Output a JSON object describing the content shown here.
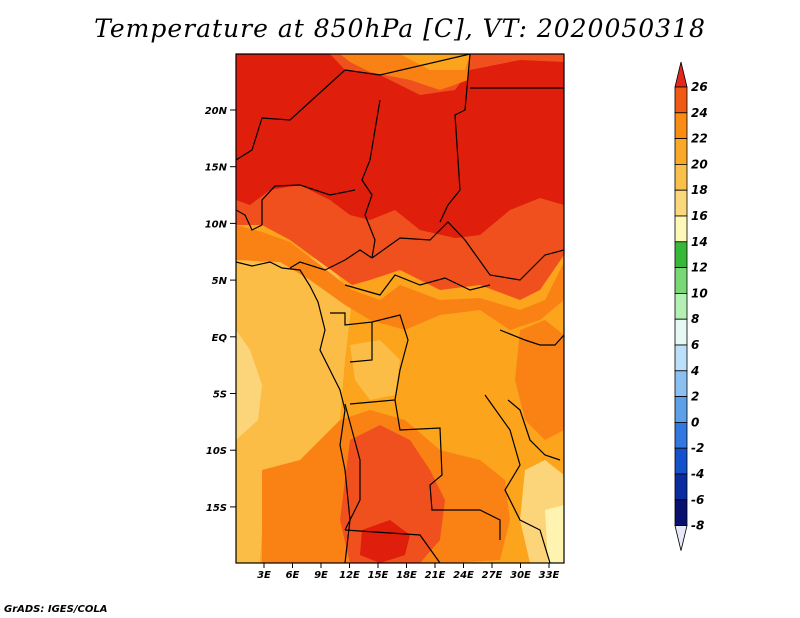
{
  "title": "Temperature at 850hPa [C], VT: 2020050318",
  "credit": "GrADS: IGES/COLA",
  "y_ticks": [
    "20N",
    "15N",
    "10N",
    "5N",
    "EQ",
    "5S",
    "10S",
    "15S"
  ],
  "x_ticks": [
    "3E",
    "6E",
    "9E",
    "12E",
    "15E",
    "18E",
    "21E",
    "24E",
    "27E",
    "30E",
    "33E"
  ],
  "colorbar": {
    "labels": [
      "26",
      "24",
      "22",
      "20",
      "18",
      "16",
      "14",
      "12",
      "10",
      "8",
      "6",
      "4",
      "2",
      "0",
      "-2",
      "-4",
      "-6",
      "-8"
    ],
    "colors": [
      "#e0281c",
      "#f05a14",
      "#fa8c14",
      "#faa828",
      "#fac04c",
      "#fbd87c",
      "#fdf8b8",
      "#38b838",
      "#78d878",
      "#b4f0b4",
      "#e6f8f4",
      "#bde0fa",
      "#8cc0f2",
      "#5ca0ea",
      "#3278e0",
      "#1452cc",
      "#0a2ca0",
      "#081070",
      "#e8e8f8"
    ]
  },
  "map_colors": {
    "hot": "#df1e0c",
    "t24": "#f0501e",
    "t22": "#fa8214",
    "t20": "#fba41c",
    "t18": "#fbbd46",
    "t16": "#fcd57a",
    "t14": "#fff3b0"
  }
}
